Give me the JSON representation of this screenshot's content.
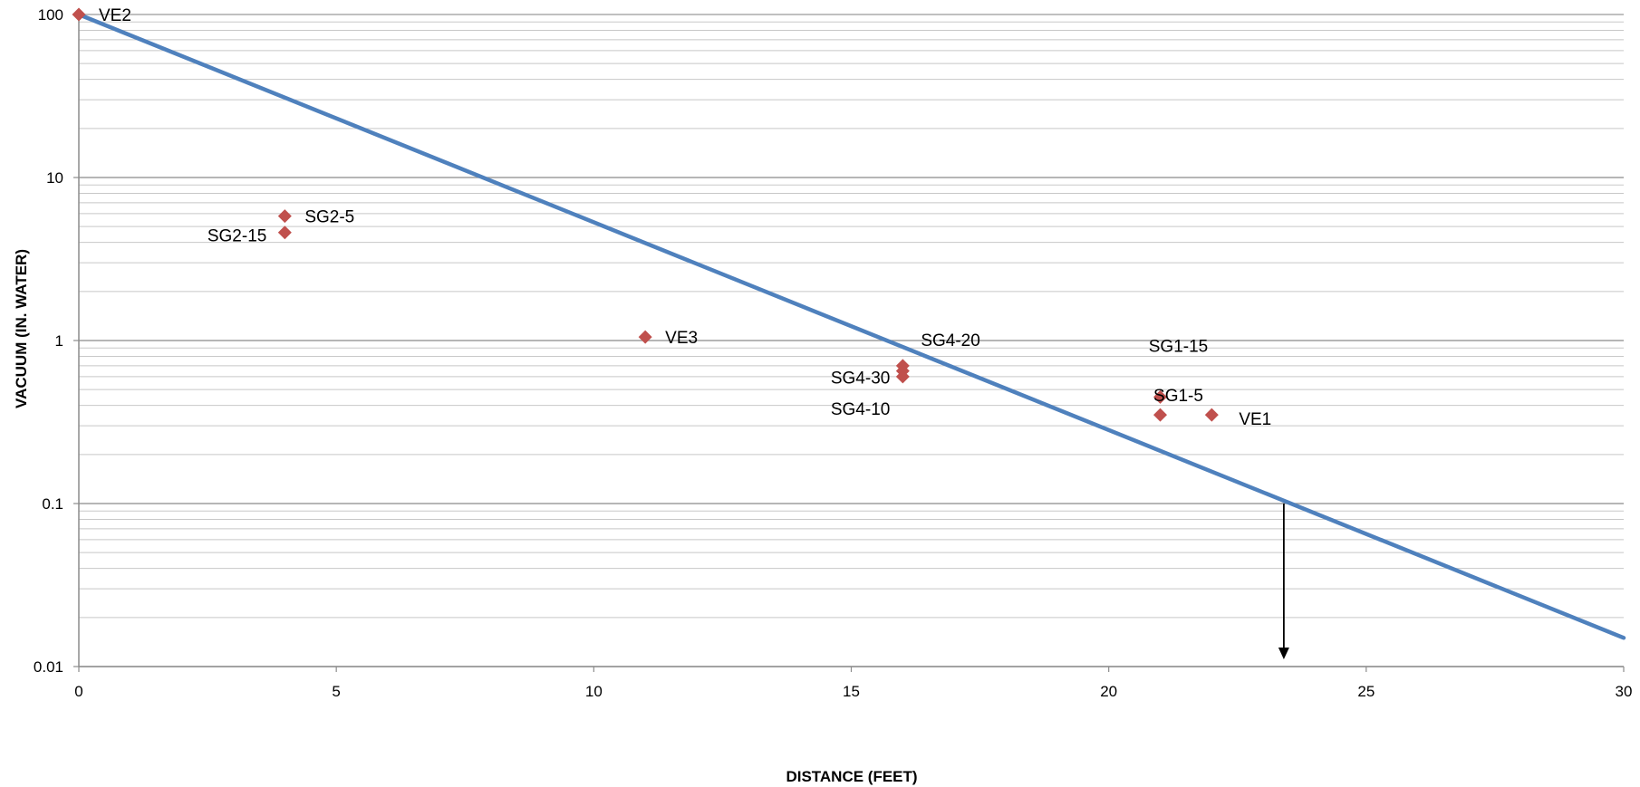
{
  "chart_data": {
    "type": "scatter",
    "title": "",
    "xlabel": "DISTANCE (FEET)",
    "ylabel": "VACUUM (IN. WATER)",
    "xlim": [
      0,
      30
    ],
    "ylim": [
      0.01,
      100
    ],
    "y_scale": "log",
    "x_ticks": [
      "0",
      "5",
      "10",
      "15",
      "20",
      "25",
      "30"
    ],
    "y_ticks": [
      "0.01",
      "0.1",
      "1",
      "10",
      "100"
    ],
    "grid": true,
    "legend": "none",
    "point_color": "#c0504d",
    "line_color": "#4f81bd",
    "points": [
      {
        "label": "VE2",
        "x": 0,
        "y": 100
      },
      {
        "label": "SG2-5",
        "x": 4,
        "y": 5.8
      },
      {
        "label": "SG2-15",
        "x": 4,
        "y": 4.6
      },
      {
        "label": "VE3",
        "x": 11,
        "y": 1.05
      },
      {
        "label": "SG4-20",
        "x": 16,
        "y": 0.7
      },
      {
        "label": "SG4-30",
        "x": 16,
        "y": 0.65
      },
      {
        "label": "SG4-10",
        "x": 16,
        "y": 0.6
      },
      {
        "label": "SG1-15",
        "x": 21,
        "y": 0.45
      },
      {
        "label": "SG1-5",
        "x": 21,
        "y": 0.35
      },
      {
        "label": "VE1",
        "x": 22,
        "y": 0.35
      }
    ],
    "trendline": {
      "x": [
        0,
        30
      ],
      "y": [
        100,
        0.015
      ]
    },
    "annotation_arrow": {
      "x": 23.4,
      "y_from": 0.1,
      "y_to": 0.01
    }
  }
}
